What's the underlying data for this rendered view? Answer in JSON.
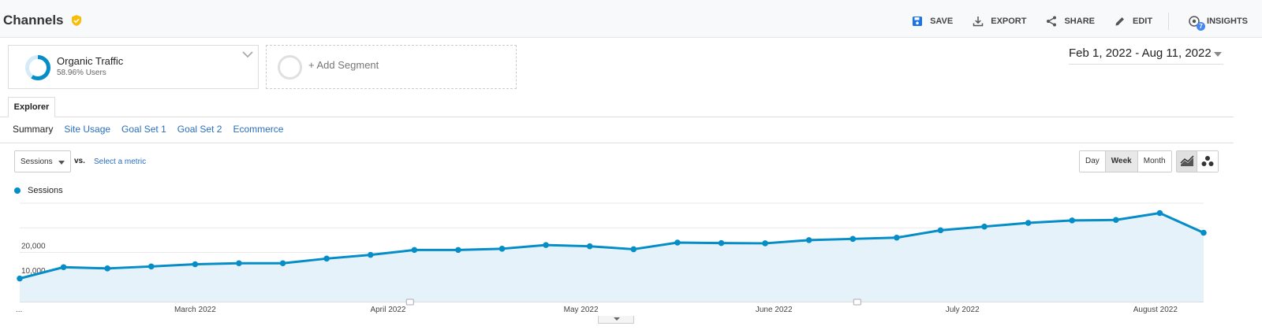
{
  "header": {
    "title": "Channels",
    "actions": [
      {
        "label": "SAVE",
        "icon": "save-icon"
      },
      {
        "label": "EXPORT",
        "icon": "export-icon"
      },
      {
        "label": "SHARE",
        "icon": "share-icon"
      },
      {
        "label": "EDIT",
        "icon": "edit-icon"
      },
      {
        "label": "INSIGHTS",
        "icon": "insights-icon",
        "badge": "7"
      }
    ]
  },
  "segments": {
    "active": {
      "name": "Organic Traffic",
      "sub": "58.96% Users",
      "percent": 58.96
    },
    "add_label": "+ Add Segment"
  },
  "date_range": "Feb 1, 2022 - Aug 11, 2022",
  "tabs": {
    "explorer": "Explorer"
  },
  "subnav": [
    "Summary",
    "Site Usage",
    "Goal Set 1",
    "Goal Set 2",
    "Ecommerce"
  ],
  "controls": {
    "metric": "Sessions",
    "vs": "vs.",
    "select_metric": "Select a metric",
    "granularity": [
      "Day",
      "Week",
      "Month"
    ],
    "active_granularity": "Week"
  },
  "colors": {
    "series": "#058dc7",
    "area": "#e6f2fa",
    "brand_accent": "#fbbc04"
  },
  "chart_data": {
    "type": "area",
    "series": [
      {
        "name": "Sessions",
        "values": [
          9400,
          14000,
          13500,
          14300,
          15200,
          15600,
          15600,
          17500,
          19000,
          21000,
          21000,
          21500,
          23000,
          22500,
          21300,
          24000,
          23800,
          23700,
          25000,
          25500,
          26000,
          29000,
          30500,
          32000,
          33000,
          33200,
          36000,
          28000
        ]
      }
    ],
    "ylim": [
      0,
      40000
    ],
    "y_ticks": [
      {
        "value": 10000,
        "label": "10,000"
      },
      {
        "value": 20000,
        "label": "20,000"
      }
    ],
    "x_labels": [
      {
        "index": 0,
        "label": "..."
      },
      {
        "index": 4,
        "label": "March 2022"
      },
      {
        "index": 8.4,
        "label": "April 2022"
      },
      {
        "index": 12.8,
        "label": "May 2022"
      },
      {
        "index": 17.2,
        "label": "June 2022"
      },
      {
        "index": 21.5,
        "label": "July 2022"
      },
      {
        "index": 25.9,
        "label": "August 2022"
      }
    ],
    "annotation_markers": [
      8.9,
      19.1
    ],
    "grid": true
  }
}
